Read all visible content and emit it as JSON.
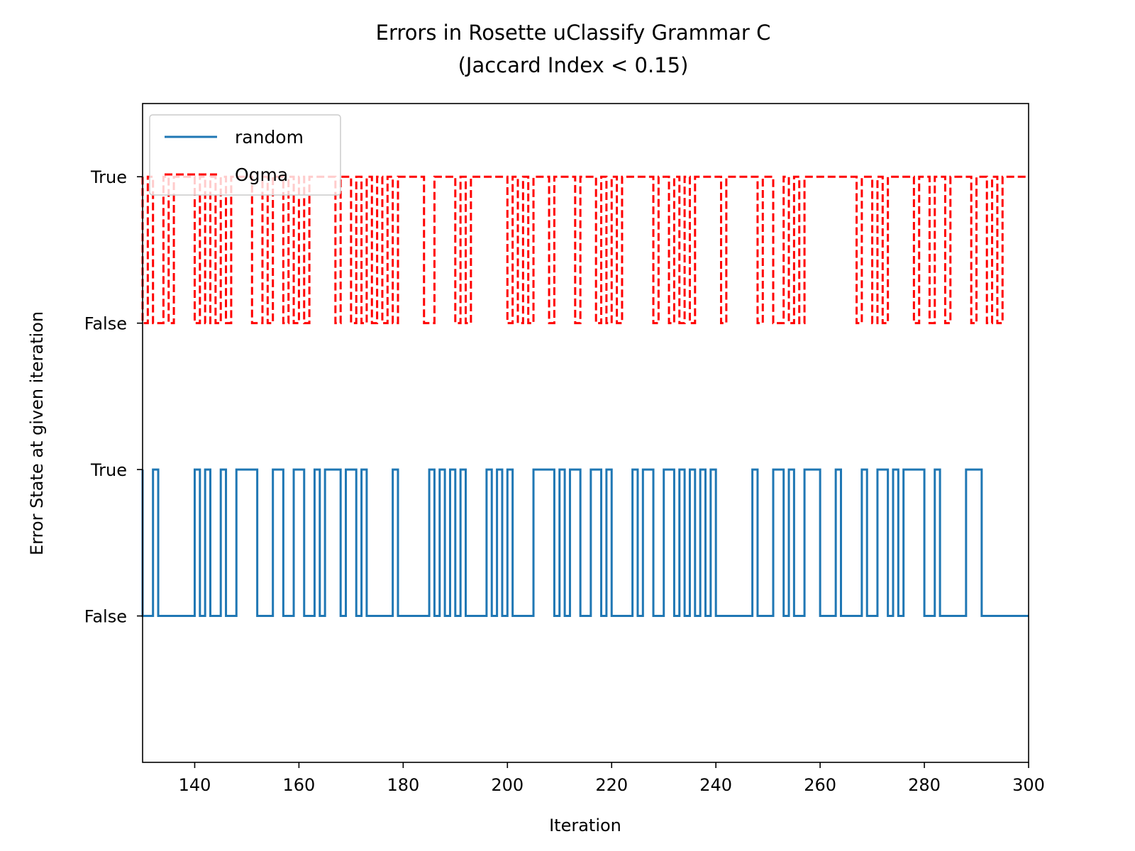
{
  "chart_data": {
    "type": "line",
    "title": "Errors in Rosette uClassify Grammar C",
    "subtitle": "(Jaccard Index < 0.15)",
    "xlabel": "Iteration",
    "ylabel": "Error State at given iteration",
    "xlim": [
      130,
      300
    ],
    "ylim": [
      -1.0,
      3.5
    ],
    "x_ticks": [
      140,
      160,
      180,
      200,
      220,
      240,
      260,
      280,
      300
    ],
    "y_ticks": [
      {
        "value": 0,
        "label": "False"
      },
      {
        "value": 1,
        "label": "True"
      },
      {
        "value": 2,
        "label": "False"
      },
      {
        "value": 3,
        "label": "True"
      }
    ],
    "grid": false,
    "legend_position": "top-left",
    "x": [
      130,
      131,
      132,
      133,
      134,
      135,
      136,
      137,
      138,
      139,
      140,
      141,
      142,
      143,
      144,
      145,
      146,
      147,
      148,
      149,
      150,
      151,
      152,
      153,
      154,
      155,
      156,
      157,
      158,
      159,
      160,
      161,
      162,
      163,
      164,
      165,
      166,
      167,
      168,
      169,
      170,
      171,
      172,
      173,
      174,
      175,
      176,
      177,
      178,
      179,
      180,
      181,
      182,
      183,
      184,
      185,
      186,
      187,
      188,
      189,
      190,
      191,
      192,
      193,
      194,
      195,
      196,
      197,
      198,
      199,
      200,
      201,
      202,
      203,
      204,
      205,
      206,
      207,
      208,
      209,
      210,
      211,
      212,
      213,
      214,
      215,
      216,
      217,
      218,
      219,
      220,
      221,
      222,
      223,
      224,
      225,
      226,
      227,
      228,
      229,
      230,
      231,
      232,
      233,
      234,
      235,
      236,
      237,
      238,
      239,
      240,
      241,
      242,
      243,
      244,
      245,
      246,
      247,
      248,
      249,
      250,
      251,
      252,
      253,
      254,
      255,
      256,
      257,
      258,
      259,
      260,
      261,
      262,
      263,
      264,
      265,
      266,
      267,
      268,
      269,
      270,
      271,
      272,
      273,
      274,
      275,
      276,
      277,
      278,
      279,
      280,
      281,
      282,
      283,
      284,
      285,
      286,
      287,
      288,
      289,
      290,
      291,
      292,
      293,
      294,
      295,
      296,
      297,
      298,
      299,
      300
    ],
    "series": [
      {
        "name": "random",
        "color": "#1f77b4",
        "dash": "solid",
        "values": [
          1,
          0,
          0,
          1,
          0,
          0,
          0,
          0,
          0,
          0,
          0,
          1,
          0,
          1,
          0,
          0,
          1,
          0,
          0,
          1,
          1,
          1,
          1,
          0,
          0,
          0,
          1,
          1,
          0,
          0,
          1,
          1,
          0,
          0,
          1,
          0,
          1,
          1,
          1,
          0,
          1,
          1,
          0,
          1,
          0,
          0,
          0,
          0,
          0,
          1,
          0,
          0,
          0,
          0,
          0,
          0,
          1,
          0,
          1,
          0,
          1,
          0,
          1,
          0,
          0,
          0,
          0,
          1,
          0,
          1,
          0,
          1,
          0,
          0,
          0,
          0,
          1,
          1,
          1,
          1,
          0,
          1,
          0,
          1,
          1,
          0,
          0,
          1,
          1,
          0,
          1,
          0,
          0,
          0,
          0,
          1,
          0,
          1,
          1,
          0,
          0,
          1,
          1,
          0,
          1,
          0,
          1,
          0,
          1,
          0,
          1,
          0,
          0,
          0,
          0,
          0,
          0,
          0,
          1,
          0,
          0,
          0,
          1,
          1,
          0,
          1,
          0,
          0,
          1,
          1,
          1,
          0,
          0,
          0,
          1,
          0,
          0,
          0,
          0,
          1,
          0,
          0,
          1,
          1,
          0,
          1,
          0,
          1,
          1,
          1,
          1,
          0,
          0,
          1,
          0,
          0,
          0,
          0,
          0,
          1,
          1,
          1,
          0,
          0,
          0,
          0,
          0,
          0,
          0,
          0,
          0
        ],
        "values_comment": ""
      },
      {
        "name": "Ogma",
        "color": "#ff0000",
        "dash": "dashed",
        "values": [
          3,
          2,
          3,
          2,
          2,
          3,
          2,
          3,
          3,
          3,
          3,
          2,
          3,
          2,
          3,
          2,
          3,
          2,
          3,
          3,
          3,
          3,
          2,
          2,
          3,
          2,
          3,
          3,
          2,
          3,
          2,
          3,
          2,
          3,
          3,
          3,
          3,
          3,
          2,
          3,
          3,
          2,
          3,
          2,
          3,
          2,
          3,
          2,
          3,
          2,
          3,
          3,
          3,
          3,
          3,
          2,
          2,
          3,
          3,
          3,
          3,
          2,
          3,
          2,
          3,
          3,
          3,
          3,
          3,
          3,
          3,
          2,
          3,
          2,
          3,
          2,
          3,
          3,
          3,
          2,
          3,
          3,
          3,
          3,
          2,
          3,
          3,
          3,
          2,
          3,
          2,
          3,
          2,
          3,
          3,
          3,
          3,
          3,
          3,
          2,
          3,
          3,
          2,
          3,
          2,
          3,
          2,
          3,
          3,
          3,
          3,
          3,
          2,
          3,
          3,
          3,
          3,
          3,
          3,
          2,
          3,
          3,
          2,
          2,
          3,
          2,
          3,
          2,
          3,
          3,
          3,
          3,
          3,
          3,
          3,
          3,
          3,
          3,
          2,
          3,
          3,
          2,
          3,
          2,
          3,
          3,
          3,
          3,
          3,
          2,
          3,
          3,
          2,
          3,
          3,
          2,
          3,
          3,
          3,
          3,
          2,
          3,
          3,
          2,
          3,
          2,
          3,
          3,
          3,
          3,
          3
        ]
      }
    ]
  }
}
